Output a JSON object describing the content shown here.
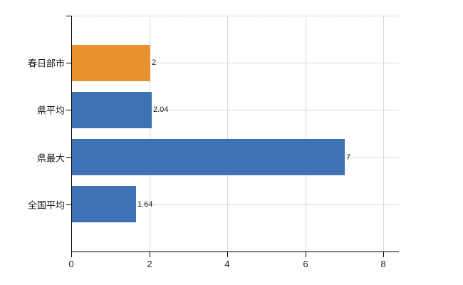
{
  "chart_data": {
    "type": "bar",
    "orientation": "horizontal",
    "title": "",
    "xlabel": "",
    "ylabel": "",
    "categories": [
      "春日部市",
      "県平均",
      "県最大",
      "全国平均"
    ],
    "values": [
      2,
      2.04,
      7,
      1.64
    ],
    "value_labels": [
      "2",
      "2.04",
      "7",
      "1.64"
    ],
    "bar_colors": [
      "#E8912F",
      "#3E72B4",
      "#3E72B4",
      "#3E72B4"
    ],
    "x_ticks": [
      0,
      2,
      4,
      6,
      8
    ],
    "x_tick_labels": [
      "0",
      "2",
      "4",
      "6",
      "8"
    ],
    "xlim": [
      0,
      8.4
    ],
    "grid": true,
    "grid_horizontal_at_category_centers": true,
    "top_border_style": "dashed",
    "legend": false
  },
  "colors": {
    "highlight_bar": "#E8912F",
    "default_bar": "#3E72B4",
    "gridline": "#D9D9D9",
    "axis": "#000000",
    "text": "#1a1a1a"
  }
}
